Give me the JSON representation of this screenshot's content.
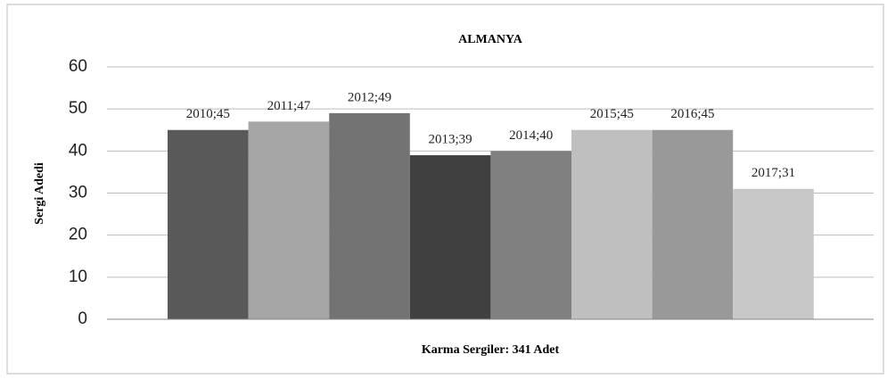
{
  "chart_data": {
    "type": "bar",
    "title": "ALMANYA",
    "xlabel": "Karma Sergiler: 341 Adet",
    "ylabel": "Sergi Adedi",
    "values": [
      45,
      47,
      49,
      39,
      40,
      45,
      45,
      31
    ],
    "value_labels": [
      "2010;45",
      "2011;47",
      "2012;49",
      "2013;39",
      "2014;40",
      "2015;45",
      "2016;45",
      "2017;31"
    ],
    "colors": [
      "#595959",
      "#a6a6a6",
      "#737373",
      "#404040",
      "#808080",
      "#bfbfbf",
      "#999999",
      "#c8c8c8"
    ],
    "ylim": [
      0,
      60
    ],
    "yticks": [
      0,
      10,
      20,
      30,
      40,
      50,
      60
    ],
    "grid": true
  }
}
